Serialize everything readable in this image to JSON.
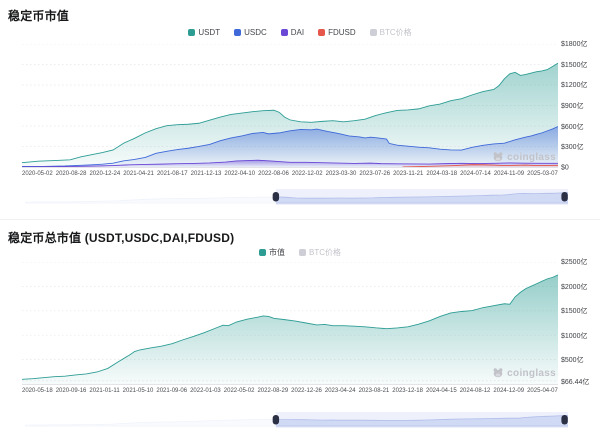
{
  "chart_data": [
    {
      "type": "area",
      "title": "稳定币市值",
      "watermark": "coinglass",
      "legend": [
        {
          "label": "USDT",
          "color": "#2d9d94",
          "enabled": true
        },
        {
          "label": "USDC",
          "color": "#3f68d9",
          "enabled": true
        },
        {
          "label": "DAI",
          "color": "#6b47d6",
          "enabled": true
        },
        {
          "label": "FDUSD",
          "color": "#e4574a",
          "enabled": true
        },
        {
          "label": "BTC价格",
          "color": "#cdced6",
          "enabled": false
        }
      ],
      "ylim": [
        0,
        1800
      ],
      "y_ticks": [
        {
          "label": "$1800亿",
          "value": 1800
        },
        {
          "label": "$1500亿",
          "value": 1500
        },
        {
          "label": "$1200亿",
          "value": 1200
        },
        {
          "label": "$900亿",
          "value": 900
        },
        {
          "label": "$600亿",
          "value": 600
        },
        {
          "label": "$300亿",
          "value": 300
        },
        {
          "label": "$0",
          "value": 0
        }
      ],
      "x_tick_labels": [
        "2020-05-02",
        "2020-08-28",
        "2020-12-24",
        "2021-04-21",
        "2021-08-17",
        "2021-12-13",
        "2022-04-10",
        "2022-08-06",
        "2022-12-02",
        "2023-03-30",
        "2023-07-26",
        "2023-11-21",
        "2024-03-18",
        "2024-07-14",
        "2024-11-09",
        "2025-03-07"
      ],
      "series": [
        {
          "name": "USDT",
          "color": "#2d9d94",
          "fill_top": 0.45,
          "points": [
            [
              0,
              63
            ],
            [
              0.03,
              85
            ],
            [
              0.06,
              95
            ],
            [
              0.09,
              105
            ],
            [
              0.11,
              150
            ],
            [
              0.13,
              180
            ],
            [
              0.15,
              210
            ],
            [
              0.17,
              250
            ],
            [
              0.19,
              350
            ],
            [
              0.21,
              420
            ],
            [
              0.23,
              500
            ],
            [
              0.25,
              560
            ],
            [
              0.27,
              605
            ],
            [
              0.29,
              620
            ],
            [
              0.31,
              625
            ],
            [
              0.33,
              640
            ],
            [
              0.35,
              685
            ],
            [
              0.37,
              730
            ],
            [
              0.39,
              770
            ],
            [
              0.41,
              790
            ],
            [
              0.43,
              810
            ],
            [
              0.45,
              825
            ],
            [
              0.47,
              830
            ],
            [
              0.48,
              800
            ],
            [
              0.49,
              730
            ],
            [
              0.5,
              690
            ],
            [
              0.52,
              660
            ],
            [
              0.54,
              655
            ],
            [
              0.56,
              668
            ],
            [
              0.58,
              678
            ],
            [
              0.6,
              662
            ],
            [
              0.62,
              678
            ],
            [
              0.64,
              700
            ],
            [
              0.66,
              755
            ],
            [
              0.68,
              795
            ],
            [
              0.7,
              828
            ],
            [
              0.72,
              835
            ],
            [
              0.74,
              850
            ],
            [
              0.76,
              895
            ],
            [
              0.78,
              920
            ],
            [
              0.8,
              970
            ],
            [
              0.82,
              1000
            ],
            [
              0.84,
              1055
            ],
            [
              0.86,
              1105
            ],
            [
              0.88,
              1135
            ],
            [
              0.89,
              1190
            ],
            [
              0.9,
              1290
            ],
            [
              0.91,
              1365
            ],
            [
              0.92,
              1385
            ],
            [
              0.93,
              1340
            ],
            [
              0.94,
              1355
            ],
            [
              0.95,
              1375
            ],
            [
              0.96,
              1395
            ],
            [
              0.97,
              1405
            ],
            [
              0.98,
              1425
            ],
            [
              0.99,
              1470
            ],
            [
              1,
              1520
            ]
          ]
        },
        {
          "name": "USDC",
          "color": "#3f68d9",
          "fill_top": 0.5,
          "points": [
            [
              0,
              7
            ],
            [
              0.04,
              9
            ],
            [
              0.08,
              15
            ],
            [
              0.11,
              25
            ],
            [
              0.13,
              32
            ],
            [
              0.15,
              40
            ],
            [
              0.17,
              55
            ],
            [
              0.19,
              90
            ],
            [
              0.21,
              110
            ],
            [
              0.23,
              140
            ],
            [
              0.25,
              200
            ],
            [
              0.27,
              230
            ],
            [
              0.29,
              255
            ],
            [
              0.31,
              275
            ],
            [
              0.33,
              300
            ],
            [
              0.35,
              330
            ],
            [
              0.37,
              385
            ],
            [
              0.39,
              425
            ],
            [
              0.41,
              455
            ],
            [
              0.43,
              490
            ],
            [
              0.45,
              505
            ],
            [
              0.46,
              485
            ],
            [
              0.48,
              500
            ],
            [
              0.5,
              530
            ],
            [
              0.52,
              550
            ],
            [
              0.54,
              545
            ],
            [
              0.55,
              555
            ],
            [
              0.57,
              520
            ],
            [
              0.59,
              490
            ],
            [
              0.61,
              455
            ],
            [
              0.63,
              440
            ],
            [
              0.64,
              425
            ],
            [
              0.65,
              435
            ],
            [
              0.66,
              430
            ],
            [
              0.68,
              410
            ],
            [
              0.685,
              345
            ],
            [
              0.7,
              320
            ],
            [
              0.72,
              305
            ],
            [
              0.74,
              290
            ],
            [
              0.76,
              280
            ],
            [
              0.78,
              262
            ],
            [
              0.8,
              250
            ],
            [
              0.82,
              248
            ],
            [
              0.84,
              288
            ],
            [
              0.86,
              318
            ],
            [
              0.88,
              338
            ],
            [
              0.9,
              348
            ],
            [
              0.92,
              398
            ],
            [
              0.94,
              438
            ],
            [
              0.95,
              455
            ],
            [
              0.96,
              478
            ],
            [
              0.97,
              500
            ],
            [
              0.98,
              528
            ],
            [
              0.99,
              558
            ],
            [
              1,
              592
            ]
          ]
        },
        {
          "name": "DAI",
          "color": "#6b47d6",
          "fill_top": 0.5,
          "points": [
            [
              0,
              1
            ],
            [
              0.06,
              4
            ],
            [
              0.1,
              9
            ],
            [
              0.14,
              14
            ],
            [
              0.17,
              22
            ],
            [
              0.2,
              32
            ],
            [
              0.23,
              38
            ],
            [
              0.26,
              42
            ],
            [
              0.29,
              48
            ],
            [
              0.32,
              52
            ],
            [
              0.35,
              60
            ],
            [
              0.38,
              72
            ],
            [
              0.4,
              88
            ],
            [
              0.42,
              95
            ],
            [
              0.44,
              98
            ],
            [
              0.46,
              90
            ],
            [
              0.48,
              80
            ],
            [
              0.5,
              68
            ],
            [
              0.53,
              68
            ],
            [
              0.56,
              64
            ],
            [
              0.59,
              58
            ],
            [
              0.62,
              52
            ],
            [
              0.65,
              57
            ],
            [
              0.67,
              50
            ],
            [
              0.7,
              47
            ],
            [
              0.73,
              45
            ],
            [
              0.76,
              44
            ],
            [
              0.79,
              50
            ],
            [
              0.82,
              53
            ],
            [
              0.85,
              51
            ],
            [
              0.88,
              53
            ],
            [
              0.91,
              59
            ],
            [
              0.94,
              55
            ],
            [
              0.97,
              53
            ],
            [
              1,
              53
            ]
          ]
        },
        {
          "name": "FDUSD",
          "color": "#e4574a",
          "fill_top": 0.55,
          "points": [
            [
              0.71,
              1
            ],
            [
              0.74,
              6
            ],
            [
              0.77,
              12
            ],
            [
              0.8,
              19
            ],
            [
              0.82,
              26
            ],
            [
              0.84,
              37
            ],
            [
              0.86,
              33
            ],
            [
              0.88,
              28
            ],
            [
              0.9,
              21
            ],
            [
              0.92,
              24
            ],
            [
              0.94,
              27
            ],
            [
              0.96,
              21
            ],
            [
              0.98,
              23
            ],
            [
              1,
              25
            ]
          ]
        }
      ],
      "navigator": {
        "selection_start": 0.462,
        "selection_end": 1.0,
        "series_index": 0
      }
    },
    {
      "type": "area",
      "title": "稳定币总市值 (USDT,USDC,DAI,FDUSD)",
      "watermark": "coinglass",
      "legend": [
        {
          "label": "市值",
          "color": "#2d9d94",
          "enabled": true
        },
        {
          "label": "BTC价格",
          "color": "#cdced6",
          "enabled": false
        }
      ],
      "ylim": [
        0,
        2500
      ],
      "y_ticks": [
        {
          "label": "$2500亿",
          "value": 2500
        },
        {
          "label": "$2000亿",
          "value": 2000
        },
        {
          "label": "$1500亿",
          "value": 1500
        },
        {
          "label": "$1000亿",
          "value": 1000
        },
        {
          "label": "$500亿",
          "value": 500
        },
        {
          "label": "$66.44亿",
          "value": 66.44
        }
      ],
      "x_tick_labels": [
        "2020-05-18",
        "2020-09-16",
        "2021-01-11",
        "2021-05-10",
        "2021-09-06",
        "2022-01-03",
        "2022-05-02",
        "2022-08-29",
        "2022-12-26",
        "2023-04-24",
        "2023-08-21",
        "2023-12-18",
        "2024-04-15",
        "2024-08-12",
        "2024-12-09",
        "2025-04-07"
      ],
      "series": [
        {
          "name": "市值",
          "color": "#2d9d94",
          "fill_top": 0.5,
          "points": [
            [
              0,
              95
            ],
            [
              0.02,
              110
            ],
            [
              0.04,
              130
            ],
            [
              0.06,
              150
            ],
            [
              0.08,
              160
            ],
            [
              0.1,
              185
            ],
            [
              0.12,
              205
            ],
            [
              0.14,
              245
            ],
            [
              0.16,
              320
            ],
            [
              0.18,
              460
            ],
            [
              0.2,
              590
            ],
            [
              0.21,
              665
            ],
            [
              0.22,
              700
            ],
            [
              0.24,
              740
            ],
            [
              0.26,
              775
            ],
            [
              0.28,
              825
            ],
            [
              0.3,
              905
            ],
            [
              0.32,
              975
            ],
            [
              0.34,
              1050
            ],
            [
              0.36,
              1140
            ],
            [
              0.375,
              1205
            ],
            [
              0.385,
              1195
            ],
            [
              0.4,
              1270
            ],
            [
              0.42,
              1330
            ],
            [
              0.44,
              1370
            ],
            [
              0.45,
              1395
            ],
            [
              0.46,
              1385
            ],
            [
              0.47,
              1345
            ],
            [
              0.49,
              1320
            ],
            [
              0.51,
              1290
            ],
            [
              0.53,
              1250
            ],
            [
              0.55,
              1210
            ],
            [
              0.565,
              1220
            ],
            [
              0.58,
              1195
            ],
            [
              0.6,
              1195
            ],
            [
              0.62,
              1185
            ],
            [
              0.64,
              1172
            ],
            [
              0.66,
              1150
            ],
            [
              0.68,
              1135
            ],
            [
              0.7,
              1148
            ],
            [
              0.72,
              1172
            ],
            [
              0.74,
              1225
            ],
            [
              0.76,
              1295
            ],
            [
              0.78,
              1385
            ],
            [
              0.8,
              1455
            ],
            [
              0.82,
              1485
            ],
            [
              0.84,
              1505
            ],
            [
              0.86,
              1565
            ],
            [
              0.88,
              1605
            ],
            [
              0.9,
              1645
            ],
            [
              0.91,
              1635
            ],
            [
              0.92,
              1785
            ],
            [
              0.93,
              1880
            ],
            [
              0.94,
              1955
            ],
            [
              0.95,
              2005
            ],
            [
              0.96,
              2055
            ],
            [
              0.97,
              2105
            ],
            [
              0.98,
              2155
            ],
            [
              0.99,
              2185
            ],
            [
              1,
              2235
            ]
          ]
        }
      ],
      "navigator": {
        "selection_start": 0.462,
        "selection_end": 1.0,
        "series_index": 0
      }
    }
  ]
}
